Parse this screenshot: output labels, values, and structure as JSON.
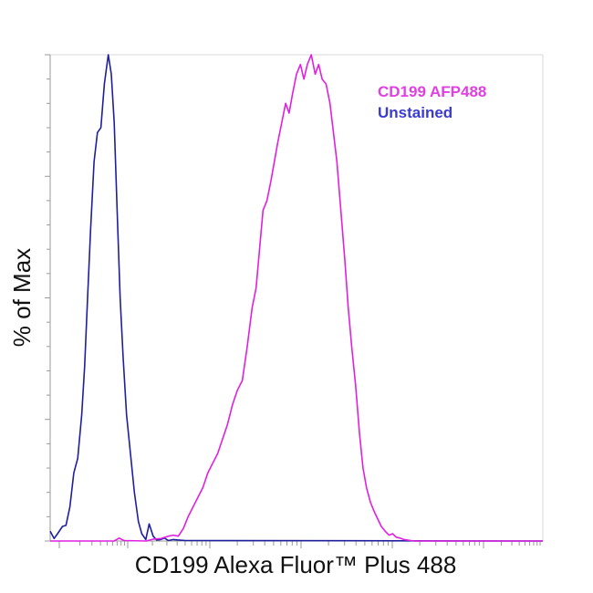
{
  "chart_data": {
    "type": "line",
    "title": "",
    "xlabel": "CD199 Alexa Fluor™ Plus 488",
    "ylabel": "% of Max",
    "xlim": [
      0,
      100
    ],
    "ylim": [
      0,
      100
    ],
    "grid": false,
    "legend_position": "top-right",
    "series": [
      {
        "name": "Unstained",
        "color": "#1f1f9e",
        "legend_color": "#3b3bd0",
        "x": [
          0,
          0.8,
          1.5,
          2.5,
          3.2,
          4.0,
          4.8,
          5.6,
          6.4,
          7.0,
          7.6,
          8.2,
          8.9,
          9.6,
          10.3,
          11.0,
          11.8,
          12.4,
          13.0,
          13.6,
          14.2,
          14.8,
          15.5,
          16.3,
          17.1,
          17.9,
          18.6,
          19.4,
          20.1,
          20.9,
          21.6,
          22.4,
          23.2,
          24.0,
          25.0,
          26.0,
          27.5,
          100
        ],
        "y": [
          2,
          0.5,
          1.5,
          3,
          3.2,
          7,
          14,
          17,
          26,
          36,
          50,
          64,
          78,
          84,
          85,
          94,
          100,
          96,
          86,
          68,
          50,
          38,
          26,
          18,
          10,
          4,
          1.5,
          0.3,
          3.5,
          1,
          0.2,
          0.3,
          0.6,
          0.1,
          0.3,
          0.2,
          0.1,
          0
        ]
      },
      {
        "name": "CD199 AFP488",
        "color": "#e020e0",
        "legend_color": "#e040e0",
        "x": [
          0,
          13,
          14,
          15,
          19.5,
          21,
          22.5,
          24,
          25,
          26,
          27,
          28,
          29,
          30,
          31,
          32,
          33,
          34,
          35,
          36,
          37,
          38,
          39,
          40,
          41,
          41.8,
          42.5,
          43.2,
          44,
          44.8,
          45.5,
          46.2,
          47,
          47.8,
          48.5,
          49.2,
          50,
          50.8,
          51.5,
          52.2,
          53,
          53.8,
          54.5,
          55.2,
          56,
          56.8,
          57.5,
          58.2,
          59,
          59.8,
          60.5,
          61.2,
          62,
          62.8,
          63.5,
          64.2,
          65,
          65.8,
          66.5,
          67.2,
          68,
          68.8,
          69.5,
          70.2,
          71,
          71.8,
          72.5,
          73.2,
          74,
          100
        ],
        "y": [
          0,
          0,
          0.6,
          0.1,
          0,
          0.4,
          0.5,
          1.0,
          1.2,
          1.0,
          2.5,
          5,
          7,
          9,
          11,
          14,
          16,
          18,
          21,
          24,
          28,
          31,
          33,
          40,
          48,
          52,
          60,
          68,
          70,
          74,
          78,
          82,
          86,
          90,
          88,
          92,
          96,
          98,
          95,
          98,
          100,
          96,
          98,
          95,
          94,
          90,
          84,
          78,
          68,
          58,
          48,
          40,
          32,
          22,
          15,
          11,
          8,
          6,
          4.5,
          3,
          2,
          1.2,
          1.5,
          0.8,
          0.6,
          0.3,
          0.2,
          0.1,
          0,
          0
        ]
      }
    ]
  }
}
